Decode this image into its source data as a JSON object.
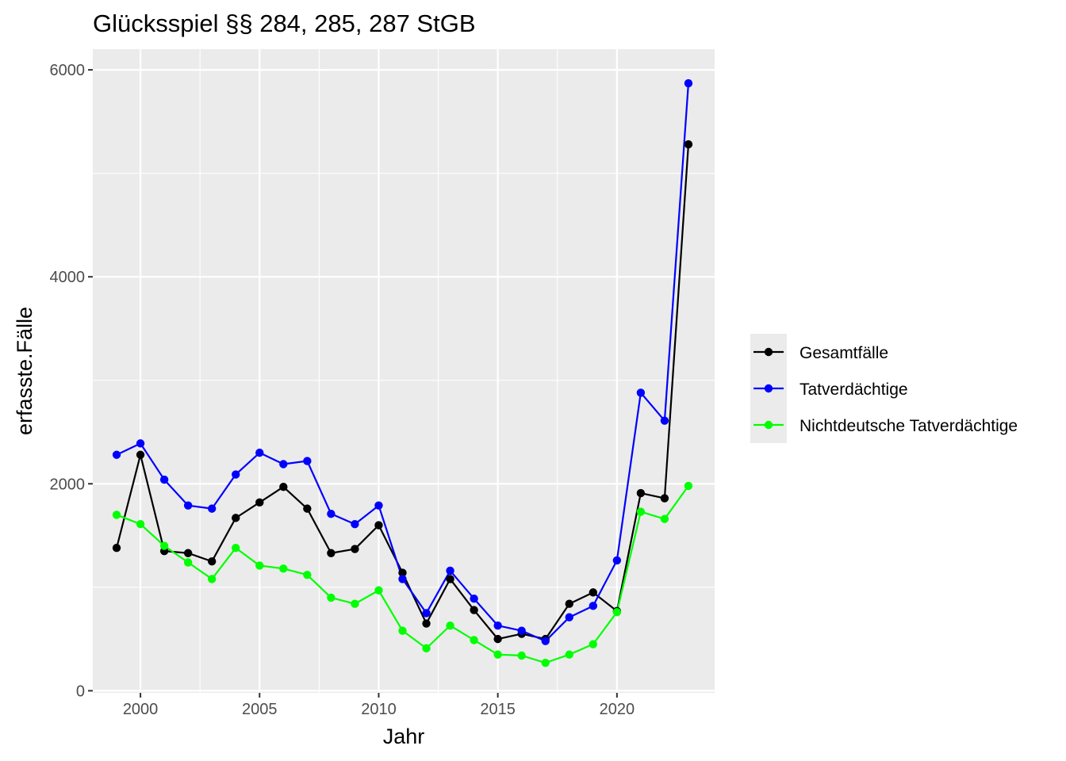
{
  "chart_data": {
    "type": "line",
    "title": "Glücksspiel §§ 284, 285, 287 StGB",
    "xlabel": "Jahr",
    "ylabel": "erfasste.Fälle",
    "xlim": [
      1998,
      2024.1
    ],
    "ylim": [
      -20,
      6200
    ],
    "x_ticks": [
      2000,
      2005,
      2010,
      2015,
      2020
    ],
    "y_ticks": [
      0,
      2000,
      4000,
      6000
    ],
    "grid": true,
    "legend_position": "right",
    "x": [
      1999,
      2000,
      2001,
      2002,
      2003,
      2004,
      2005,
      2006,
      2007,
      2008,
      2009,
      2010,
      2011,
      2012,
      2013,
      2014,
      2015,
      2016,
      2017,
      2018,
      2019,
      2020,
      2021,
      2022,
      2023
    ],
    "series": [
      {
        "name": "Gesamtfälle",
        "color": "#000000",
        "values": [
          1380,
          2280,
          1350,
          1330,
          1250,
          1670,
          1820,
          1970,
          1760,
          1330,
          1370,
          1600,
          1140,
          650,
          1080,
          780,
          500,
          550,
          500,
          840,
          950,
          770,
          1910,
          1860,
          5280
        ]
      },
      {
        "name": "Tatverdächtige",
        "color": "#0000ff",
        "values": [
          2280,
          2390,
          2040,
          1790,
          1760,
          2090,
          2300,
          2190,
          2220,
          1710,
          1610,
          1790,
          1080,
          750,
          1160,
          890,
          630,
          580,
          480,
          710,
          820,
          1260,
          2880,
          2610,
          5870
        ]
      },
      {
        "name": "Nichtdeutsche Tatverdächtige",
        "color": "#00ff00",
        "values": [
          1700,
          1610,
          1400,
          1240,
          1080,
          1380,
          1210,
          1180,
          1120,
          900,
          840,
          970,
          580,
          410,
          630,
          490,
          350,
          340,
          270,
          350,
          450,
          760,
          1730,
          1660,
          1980
        ]
      }
    ]
  }
}
